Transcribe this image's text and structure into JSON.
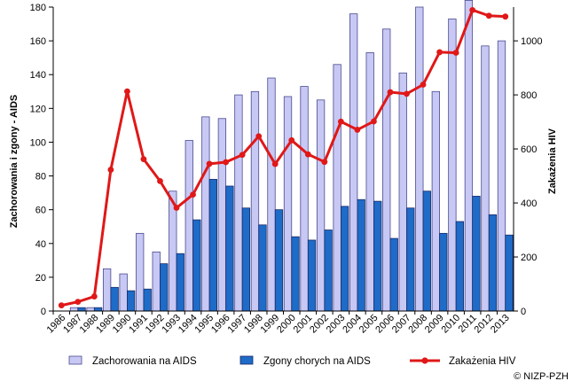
{
  "chart_data": {
    "type": "bar",
    "categories": [
      "1986",
      "1987",
      "1988",
      "1989",
      "1990",
      "1991",
      "1992",
      "1993",
      "1994",
      "1995",
      "1996",
      "1997",
      "1998",
      "1999",
      "2000",
      "2001",
      "2002",
      "2003",
      "2004",
      "2005",
      "2006",
      "2007",
      "2008",
      "2009",
      "2010",
      "2011",
      "2012",
      "2013"
    ],
    "series": [
      {
        "name": "Zachorowania na AIDS",
        "type": "bar",
        "axis": "left",
        "color": "#c8c8f4",
        "values": [
          0,
          2,
          2,
          25,
          22,
          46,
          35,
          71,
          101,
          115,
          114,
          128,
          130,
          138,
          127,
          133,
          125,
          146,
          176,
          153,
          167,
          141,
          180,
          130,
          173,
          184,
          157,
          160
        ]
      },
      {
        "name": "Zgony chorych na AIDS",
        "type": "bar",
        "axis": "left",
        "color": "#1e6bc8",
        "values": [
          0,
          2,
          2,
          14,
          12,
          13,
          28,
          34,
          54,
          78,
          74,
          61,
          51,
          60,
          44,
          42,
          48,
          62,
          66,
          65,
          43,
          61,
          71,
          46,
          53,
          68,
          57,
          45
        ]
      },
      {
        "name": "Zakażenia HIV",
        "type": "line",
        "axis": "right",
        "color": "#e01818",
        "values": [
          21,
          34,
          54,
          523,
          813,
          562,
          481,
          382,
          431,
          545,
          551,
          578,
          647,
          544,
          632,
          580,
          552,
          701,
          671,
          702,
          810,
          804,
          838,
          958,
          956,
          1114,
          1093,
          1090
        ]
      }
    ],
    "ylabel": "Zachorowania i zgony - AIDS",
    "ylabel_right": "Zakażenia HIV",
    "ylim": [
      0,
      180
    ],
    "yticks": [
      "0",
      "20",
      "40",
      "60",
      "80",
      "100",
      "120",
      "140",
      "160",
      "180"
    ],
    "ylim_right": [
      0,
      1125
    ],
    "yticks_right": [
      "0",
      "200",
      "400",
      "600",
      "800",
      "1000"
    ],
    "grid": false,
    "legend_position": "bottom",
    "credit": "© NIZP-PZH"
  }
}
